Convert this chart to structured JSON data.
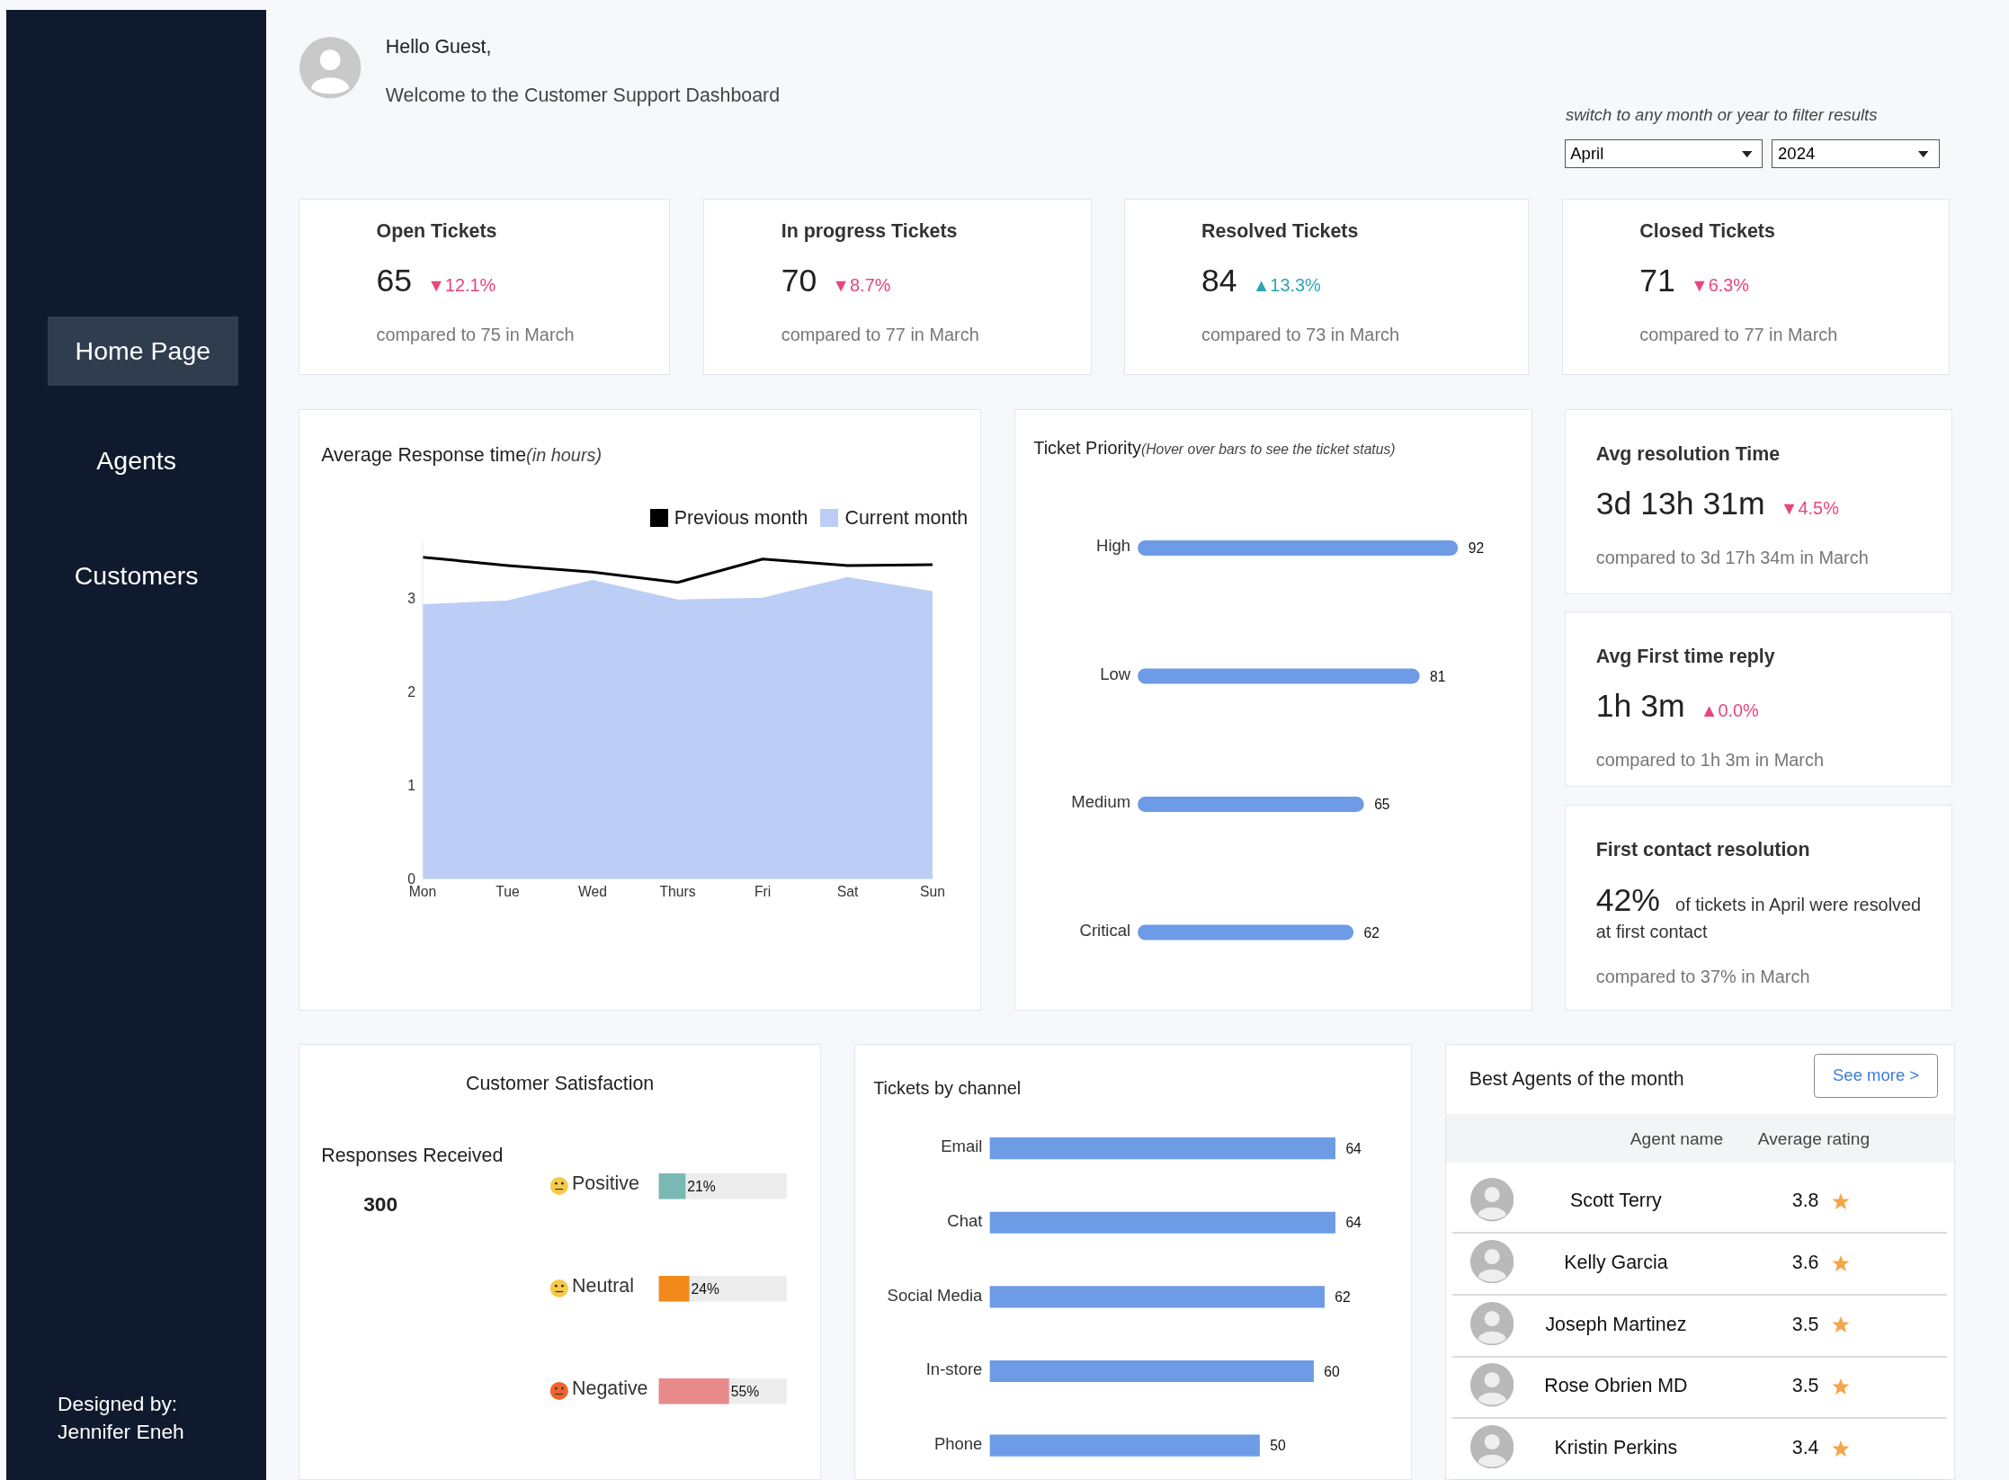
{
  "chart_data": [
    {
      "type": "other",
      "title": "Hello Guest,",
      "subtitle": "Welcome to the Customer Support Dashboard",
      "annotations": [
        "switch to any month or year to filter results",
        "April",
        "2024",
        "Home Page",
        "Agents",
        "Customers",
        "Designed by:",
        "Jennifer Eneh"
      ]
    },
    {
      "type": "other",
      "title": "Open Tickets",
      "annotations": [
        "65",
        "▼12.1%",
        "compared to 75 in March"
      ],
      "colors": [
        "#222222",
        "#e8457a",
        "#777777"
      ]
    },
    {
      "type": "other",
      "title": "In progress Tickets",
      "annotations": [
        "70",
        "▼8.7%",
        "compared to 77 in March"
      ],
      "colors": [
        "#222222",
        "#e8457a",
        "#777777"
      ]
    },
    {
      "type": "other",
      "title": "Resolved Tickets",
      "annotations": [
        "84",
        "▲13.3%",
        "compared to 73 in March"
      ],
      "colors": [
        "#222222",
        "#2fa4b5",
        "#777777"
      ]
    },
    {
      "type": "other",
      "title": "Closed Tickets",
      "annotations": [
        "71",
        "▼6.3%",
        "compared to 77 in March"
      ],
      "colors": [
        "#222222",
        "#e8457a",
        "#777777"
      ]
    },
    {
      "type": "area",
      "title": "Average Response time",
      "subtitle": "(in hours)",
      "categories": [
        "Mon",
        "Tue",
        "Wed",
        "Thurs",
        "Fri",
        "Sat",
        "Sun"
      ],
      "series": [
        {
          "name": "Previous month",
          "type": "line",
          "color": "#000000",
          "values": [
            3.44,
            3.35,
            3.28,
            3.17,
            3.42,
            3.35,
            3.36
          ]
        },
        {
          "name": "Current month",
          "type": "area",
          "color": "#bccef5",
          "values": [
            2.93,
            2.97,
            3.19,
            2.98,
            3.0,
            3.22,
            3.07
          ]
        }
      ],
      "ylim": [
        0,
        3.6
      ],
      "yticks": [
        0,
        1,
        2,
        3
      ],
      "legend": "top right"
    },
    {
      "type": "bar",
      "orientation": "horizontal",
      "title": "Ticket Priority",
      "subtitle": "(Hover over bars to see the ticket status)",
      "categories": [
        "High",
        "Low",
        "Medium",
        "Critical"
      ],
      "values": [
        92,
        81,
        65,
        62
      ],
      "color": "#6d9be6",
      "data_labels": true
    },
    {
      "type": "other",
      "title": "Avg resolution Time",
      "annotations": [
        "3d 13h 31m",
        "▼4.5%",
        "compared to 3d 17h 34m in March"
      ],
      "colors": [
        "#222222",
        "#e8457a",
        "#777777"
      ]
    },
    {
      "type": "other",
      "title": "Avg First time reply",
      "annotations": [
        "1h 3m",
        "▲0.0%",
        "compared to 1h 3m in March"
      ],
      "colors": [
        "#222222",
        "#e8457a",
        "#777777"
      ]
    },
    {
      "type": "other",
      "title": "First contact resolution",
      "annotations": [
        "42%",
        "of tickets in April were resolved at first contact",
        "compared to 37% in March"
      ],
      "colors": [
        "#222222",
        "#333333",
        "#777777"
      ]
    },
    {
      "type": "bar",
      "orientation": "horizontal",
      "title": "Customer Satisfaction",
      "categories": [
        "Positive",
        "Neutral",
        "Negative"
      ],
      "values": [
        21,
        24,
        55
      ],
      "colors": [
        "#7ab8b3",
        "#f28a1b",
        "#e88a8a"
      ],
      "value_labels": [
        "21%",
        "24%",
        "55%"
      ],
      "xlim": [
        0,
        100
      ],
      "annotations": [
        "Responses Received",
        "300"
      ]
    },
    {
      "type": "bar",
      "orientation": "horizontal",
      "title": "Tickets by channel",
      "categories": [
        "Email",
        "Chat",
        "Social Media",
        "In-store",
        "Phone"
      ],
      "values": [
        64,
        64,
        62,
        60,
        50
      ],
      "color": "#6d9be6",
      "data_labels": true
    },
    {
      "type": "other",
      "title": "Best Agents of the month",
      "annotations": [
        "See more >",
        "Agent name",
        "Average rating",
        "Scott Terry",
        "3.8",
        "Kelly Garcia",
        "3.6",
        "Joseph Martinez",
        "3.5",
        "Rose Obrien MD",
        "3.5",
        "Kristin Perkins",
        "3.4"
      ]
    }
  ]
}
